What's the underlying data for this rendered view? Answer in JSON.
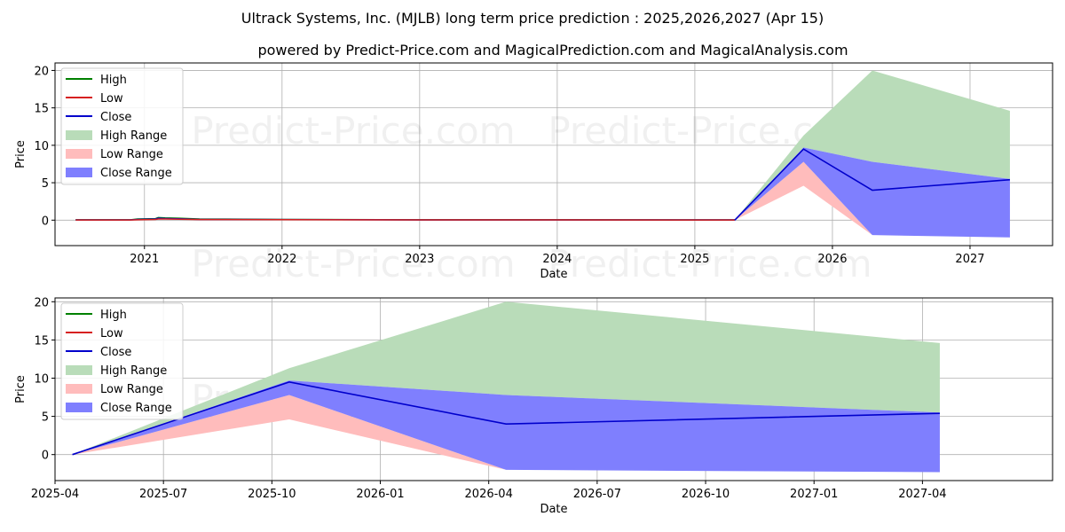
{
  "title": "Ultrack Systems, Inc. (MJLB) long term price prediction : 2025,2026,2027 (Apr 15)",
  "subtitle": "powered by Predict-Price.com and MagicalPrediction.com and MagicalAnalysis.com",
  "watermark": "Predict-Price.com",
  "colors": {
    "high": "#008000",
    "low": "#d62020",
    "close": "#0000cc",
    "high_range": "#b9dcb9",
    "low_range": "#ffbcbc",
    "close_range": "#7f7ffe"
  },
  "chart_data": [
    {
      "type": "line",
      "xlabel": "Date",
      "ylabel": "Price",
      "xlim": [
        2020.35,
        2027.6
      ],
      "ylim": [
        -3.4,
        21
      ],
      "x_ticks": [
        2021,
        2022,
        2023,
        2024,
        2025,
        2026,
        2027
      ],
      "x_tick_labels": [
        "2021",
        "2022",
        "2023",
        "2024",
        "2025",
        "2026",
        "2027"
      ],
      "y_ticks": [
        0,
        5,
        10,
        15,
        20
      ],
      "y_tick_labels": [
        "0",
        "5",
        "10",
        "15",
        "20"
      ],
      "grid": true,
      "legend": {
        "position": "top-left",
        "entries": [
          "High",
          "Low",
          "Close",
          "High Range",
          "Low Range",
          "Close Range"
        ]
      },
      "historical": {
        "x": [
          2020.5,
          2020.9,
          2020.95,
          2021.08,
          2021.1,
          2021.15,
          2021.25,
          2021.4,
          2022.0,
          2023.0,
          2024.0,
          2025.0,
          2025.29
        ],
        "high": [
          0.05,
          0.05,
          0.15,
          0.2,
          0.35,
          0.3,
          0.25,
          0.15,
          0.1,
          0.05,
          0.05,
          0.04,
          0.04
        ],
        "low": [
          0.02,
          0.02,
          0.05,
          0.1,
          0.15,
          0.15,
          0.12,
          0.08,
          0.06,
          0.03,
          0.03,
          0.02,
          0.02
        ],
        "close": [
          0.03,
          0.03,
          0.1,
          0.15,
          0.25,
          0.22,
          0.18,
          0.1,
          0.08,
          0.04,
          0.04,
          0.03,
          0.03
        ]
      },
      "forecast": {
        "x": [
          2025.29,
          2025.79,
          2026.29,
          2027.29
        ],
        "close": [
          0,
          9.5,
          4.0,
          5.4
        ],
        "high_range_upper": [
          0,
          11.3,
          20.0,
          14.6
        ],
        "high_range_lower": [
          0,
          9.7,
          7.8,
          5.5
        ],
        "low_range_upper": [
          0,
          7.8,
          -2.0,
          -2.2
        ],
        "low_range_lower": [
          0,
          4.6,
          -2.0,
          -2.2
        ],
        "close_range_upper": [
          0,
          9.7,
          7.8,
          5.5
        ],
        "close_range_lower": [
          0,
          7.8,
          -2.0,
          -2.3
        ]
      }
    },
    {
      "type": "line",
      "xlabel": "Date",
      "ylabel": "Price",
      "xlim": [
        2025.25,
        2027.55
      ],
      "ylim": [
        -3.4,
        20.5
      ],
      "x_ticks": [
        2025.25,
        2025.5,
        2025.75,
        2026.0,
        2026.25,
        2026.5,
        2026.75,
        2027.0,
        2027.25
      ],
      "x_tick_labels": [
        "2025-04",
        "2025-07",
        "2025-10",
        "2026-01",
        "2026-04",
        "2026-07",
        "2026-10",
        "2027-01",
        "2027-04"
      ],
      "y_ticks": [
        0,
        5,
        10,
        15,
        20
      ],
      "y_tick_labels": [
        "0",
        "5",
        "10",
        "15",
        "20"
      ],
      "grid": true,
      "legend": {
        "position": "top-left",
        "entries": [
          "High",
          "Low",
          "Close",
          "High Range",
          "Low Range",
          "Close Range"
        ]
      },
      "forecast": {
        "x": [
          2025.29,
          2025.79,
          2026.29,
          2027.29
        ],
        "close": [
          0,
          9.5,
          4.0,
          5.4
        ],
        "high_range_upper": [
          0,
          11.3,
          20.0,
          14.6
        ],
        "high_range_lower": [
          0,
          9.7,
          7.8,
          5.5
        ],
        "low_range_upper": [
          0,
          7.8,
          -2.0,
          -2.2
        ],
        "low_range_lower": [
          0,
          4.6,
          -2.0,
          -2.2
        ],
        "close_range_upper": [
          0,
          9.7,
          7.8,
          5.5
        ],
        "close_range_lower": [
          0,
          7.8,
          -2.0,
          -2.3
        ]
      }
    }
  ]
}
